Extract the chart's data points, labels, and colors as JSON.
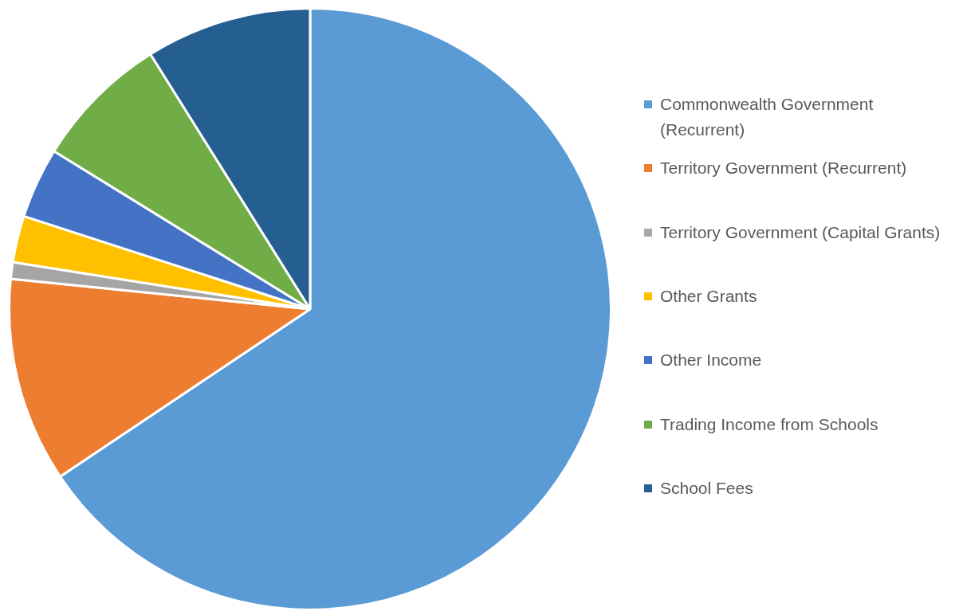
{
  "chart_data": {
    "type": "pie",
    "categories": [
      "Commonwealth Government (Recurrent)",
      "Territory Government (Recurrent)",
      "Territory Government (Capital Grants)",
      "Other Grants",
      "Other Income",
      "Trading Income from Schools",
      "School Fees"
    ],
    "values": [
      65.6,
      11.0,
      0.9,
      2.5,
      3.8,
      7.3,
      8.9
    ],
    "colors": [
      "#5b9bd5",
      "#ed7d31",
      "#a5a5a5",
      "#ffc000",
      "#4472c4",
      "#70ad47",
      "#255e91"
    ],
    "legend": "right"
  }
}
